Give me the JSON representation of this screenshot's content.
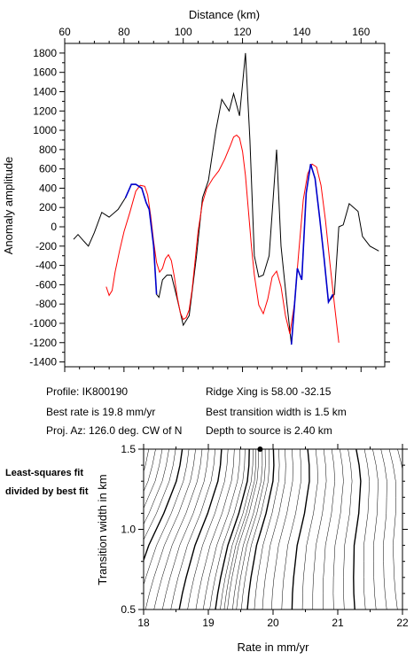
{
  "chart_data": [
    {
      "type": "line",
      "title": "",
      "xlabel": "Distance (km)",
      "ylabel": "Anomaly amplitude",
      "xlim": [
        60,
        168
      ],
      "ylim": [
        -1450,
        1900
      ],
      "xticks": [
        "60",
        "80",
        "100",
        "120",
        "140",
        "160"
      ],
      "yticks": [
        "-1400",
        "-1200",
        "-1000",
        "-800",
        "-600",
        "-400",
        "-200",
        "0",
        "200",
        "400",
        "600",
        "800",
        "1000",
        "1200",
        "1400",
        "1600",
        "1800"
      ],
      "grid": false,
      "series": [
        {
          "color": "#000000",
          "x": [
            63,
            64.5,
            66.5,
            68,
            70,
            72.5,
            75,
            78,
            80.5,
            82.5,
            84,
            86,
            87.5,
            88.5,
            90,
            91,
            91.8,
            93,
            94.5,
            96,
            98,
            100,
            102,
            104.5,
            106.5,
            108.5,
            111,
            113,
            115.5,
            117,
            119,
            121,
            122.5,
            124,
            125.5,
            127,
            129,
            131.5,
            133,
            135,
            136.5,
            137.5,
            138.5,
            140,
            141.5,
            143,
            144.5,
            146,
            147.5,
            149,
            151,
            152.5,
            154,
            156,
            157.5,
            159,
            160.5,
            163,
            166
          ],
          "y": [
            -130,
            -80,
            -150,
            -200,
            -60,
            150,
            100,
            180,
            300,
            440,
            440,
            400,
            250,
            180,
            -200,
            -700,
            -730,
            -550,
            -500,
            -500,
            -750,
            -1020,
            -920,
            -300,
            300,
            480,
            1000,
            1320,
            1200,
            1380,
            1150,
            1800,
            900,
            -300,
            -520,
            -500,
            -300,
            800,
            -200,
            -800,
            -1220,
            -820,
            -430,
            -550,
            350,
            650,
            500,
            100,
            -320,
            -780,
            -700,
            0,
            20,
            240,
            200,
            160,
            -100,
            -200,
            -250
          ]
        },
        {
          "color": "#0000cc",
          "x": [
            80.5,
            82.5,
            84,
            86,
            87.5,
            88.5,
            90,
            91
          ],
          "y": [
            300,
            440,
            440,
            400,
            250,
            180,
            -200,
            -700
          ]
        },
        {
          "color": "#0000cc",
          "x": [
            136.5,
            137.5,
            138.5,
            140,
            141.5,
            143,
            144.5,
            146,
            147.5,
            149,
            150.5
          ],
          "y": [
            -1220,
            -820,
            -430,
            -550,
            350,
            650,
            500,
            100,
            -320,
            -780,
            -700
          ]
        },
        {
          "color": "#ff0000",
          "x": [
            74,
            75,
            76,
            77,
            78.5,
            80,
            82,
            84,
            85.5,
            87,
            88,
            89,
            90,
            91,
            92,
            93,
            94,
            95,
            96,
            97,
            98,
            99,
            100,
            101,
            102,
            103,
            104,
            105,
            106.5,
            108,
            110,
            112,
            114,
            116,
            117,
            118,
            119,
            120,
            121,
            122,
            123,
            124,
            125.5,
            127,
            128.5,
            130,
            131.5,
            133,
            134.5,
            136,
            137.5,
            139,
            140.5,
            142,
            143.5,
            145,
            146.5,
            148,
            149.5,
            151,
            152.5
          ],
          "y": [
            -620,
            -710,
            -660,
            -470,
            -250,
            -50,
            150,
            370,
            430,
            420,
            330,
            120,
            -150,
            -370,
            -470,
            -430,
            -330,
            -290,
            -350,
            -520,
            -730,
            -890,
            -960,
            -940,
            -860,
            -650,
            -350,
            -50,
            250,
            400,
            500,
            580,
            700,
            850,
            930,
            950,
            920,
            780,
            530,
            170,
            -200,
            -500,
            -810,
            -900,
            -750,
            -520,
            -460,
            -620,
            -920,
            -1110,
            -800,
            -250,
            280,
            550,
            650,
            620,
            430,
            70,
            -380,
            -800,
            -1200
          ]
        }
      ]
    },
    {
      "type": "contour",
      "title": "",
      "xlabel": "Rate in mm/yr",
      "ylabel": "Transition width in km",
      "xlim": [
        18,
        22
      ],
      "ylim": [
        0.5,
        1.5
      ],
      "xticks": [
        "18",
        "19",
        "20",
        "21",
        "22"
      ],
      "yticks": [
        "0.5",
        "1.0",
        "1.5"
      ],
      "grid": false,
      "best_fit_point": [
        19.8,
        1.5
      ],
      "min_rate": [
        19.8,
        19.8,
        19.78,
        19.72,
        19.66,
        19.58,
        19.5,
        19.45,
        19.4,
        19.36,
        19.33
      ],
      "contour_levels": [
        {
          "d": 0.03,
          "bold": false
        },
        {
          "d": 0.07,
          "bold": false
        },
        {
          "d": 0.12,
          "bold": false
        },
        {
          "d": 0.18,
          "bold": true
        },
        {
          "d": 0.25,
          "bold": false
        },
        {
          "d": 0.33,
          "bold": false
        },
        {
          "d": 0.42,
          "bold": false
        },
        {
          "d": 0.52,
          "bold": false
        },
        {
          "d": 0.62,
          "bold": true
        },
        {
          "d": 0.72,
          "bold": false
        },
        {
          "d": 0.82,
          "bold": false
        },
        {
          "d": 0.92,
          "bold": false
        },
        {
          "d": 1.02,
          "bold": false
        },
        {
          "d": 1.12,
          "bold": false
        },
        {
          "d": 1.22,
          "bold": true
        },
        {
          "d": 1.32,
          "bold": false
        },
        {
          "d": 1.42,
          "bold": false
        },
        {
          "d": 1.52,
          "bold": false
        },
        {
          "d": 1.62,
          "bold": false
        },
        {
          "d": 1.72,
          "bold": false
        },
        {
          "d": 1.82,
          "bold": true
        },
        {
          "d": 1.92,
          "bold": false
        },
        {
          "d": 2.02,
          "bold": false
        },
        {
          "d": 2.12,
          "bold": false
        },
        {
          "d": 2.22,
          "bold": false
        },
        {
          "d": 2.32,
          "bold": false
        },
        {
          "d": 2.42,
          "bold": true
        },
        {
          "d": 2.52,
          "bold": false
        },
        {
          "d": 2.62,
          "bold": false
        },
        {
          "d": 2.72,
          "bold": false
        },
        {
          "d": 2.82,
          "bold": false
        },
        {
          "d": 2.92,
          "bold": false
        }
      ]
    }
  ],
  "info": {
    "profile": "Profile: IK800190",
    "best_rate": "Best rate is 19.8 mm/yr",
    "proj_az": "Proj. Az: 126.0 deg. CW of N",
    "ridge_xing": "Ridge Xing is 58.00 -32.15",
    "best_width": "Best transition width is 1.5 km",
    "depth": "Depth to source is   2.40 km",
    "side_note": "Least-squares fit divided by best fit"
  }
}
